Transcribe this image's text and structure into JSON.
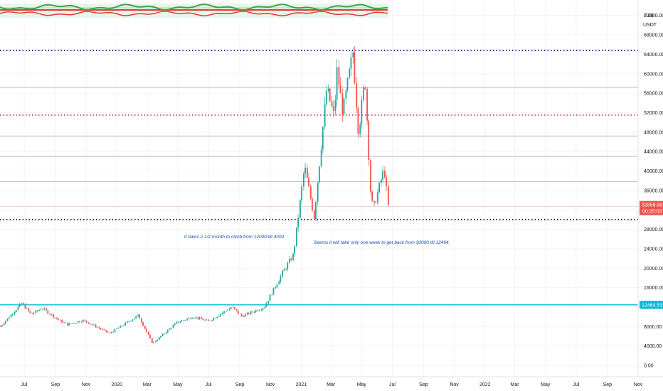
{
  "colors": {
    "up": "#26a69a",
    "down": "#ef5350",
    "dotted_level": "#3d0a8f",
    "red_dotted_level": "#b71c1c",
    "support": "#00bcd4",
    "hline": "#9e9e9e",
    "price_tag": "#ef5350",
    "support_tag": "#00bcd4",
    "note_text": "#1848cc",
    "osc_green": "#43a047",
    "osc_red": "#e53935"
  },
  "header": {
    "top_price": "0.00",
    "currency": "USDT"
  },
  "chart_data": {
    "type": "candlestick",
    "y_axis": {
      "ticks": [
        0,
        4000,
        8000,
        12000,
        16000,
        20000,
        24000,
        28000,
        32000,
        36000,
        40000,
        44000,
        48000,
        52000,
        56000,
        60000,
        64000,
        68000,
        72000
      ],
      "tick_labels": [
        "0.00",
        "4000.00",
        "8000.00",
        "12000.00",
        "16000.00",
        "20000.00",
        "24000.00",
        "28000.00",
        "32000.00",
        "36000.00",
        "40000.00",
        "44000.00",
        "48000.00",
        "52000.00",
        "56000.00",
        "60000.00",
        "64000.00",
        "68000.00",
        "72000.00"
      ],
      "ylim": [
        -2000,
        76000
      ]
    },
    "x_axis": {
      "tick_labels": [
        "Jul",
        "Sep",
        "Nov",
        "2020",
        "Mar",
        "May",
        "Jul",
        "Sep",
        "Nov",
        "2021",
        "Mar",
        "May",
        "Jul",
        "Sep",
        "Nov",
        "2022",
        "Mar",
        "May",
        "Jul",
        "Sep",
        "Nov"
      ],
      "tick_dates": [
        "2019-07",
        "2019-09",
        "2019-11",
        "2020-01",
        "2020-03",
        "2020-05",
        "2020-07",
        "2020-09",
        "2020-11",
        "2021-01",
        "2021-03",
        "2021-05",
        "2021-07",
        "2021-09",
        "2021-11",
        "2022-01",
        "2022-03",
        "2022-05",
        "2022-07",
        "2022-09",
        "2022-11"
      ]
    },
    "price_path": [
      {
        "date": "2019-05-15",
        "close": 8000
      },
      {
        "date": "2019-06-26",
        "close": 12800
      },
      {
        "date": "2019-07-15",
        "close": 10500
      },
      {
        "date": "2019-08-06",
        "close": 11800
      },
      {
        "date": "2019-09-01",
        "close": 9800
      },
      {
        "date": "2019-09-24",
        "close": 8400
      },
      {
        "date": "2019-10-26",
        "close": 9300
      },
      {
        "date": "2019-12-18",
        "close": 6600
      },
      {
        "date": "2020-02-13",
        "close": 10300
      },
      {
        "date": "2020-03-12",
        "close": 4500
      },
      {
        "date": "2020-04-29",
        "close": 8800
      },
      {
        "date": "2020-06-01",
        "close": 10000
      },
      {
        "date": "2020-07-01",
        "close": 9100
      },
      {
        "date": "2020-08-17",
        "close": 12000
      },
      {
        "date": "2020-09-05",
        "close": 10100
      },
      {
        "date": "2020-10-20",
        "close": 12000
      },
      {
        "date": "2020-11-25",
        "close": 19000
      },
      {
        "date": "2020-12-17",
        "close": 22800
      },
      {
        "date": "2021-01-08",
        "close": 41000
      },
      {
        "date": "2021-01-27",
        "close": 30500
      },
      {
        "date": "2021-02-21",
        "close": 57000
      },
      {
        "date": "2021-03-08",
        "close": 51000
      },
      {
        "date": "2021-03-13",
        "close": 61000
      },
      {
        "date": "2021-03-25",
        "close": 52000
      },
      {
        "date": "2021-04-14",
        "close": 64500
      },
      {
        "date": "2021-04-25",
        "close": 48000
      },
      {
        "date": "2021-05-08",
        "close": 59000
      },
      {
        "date": "2021-05-19",
        "close": 36000
      },
      {
        "date": "2021-05-24",
        "close": 32000
      },
      {
        "date": "2021-06-15",
        "close": 40500
      },
      {
        "date": "2021-06-23",
        "close": 32659.99
      }
    ],
    "levels": [
      {
        "price": 64800,
        "style": "dotted-purple"
      },
      {
        "price": 57200,
        "style": "solid-gray"
      },
      {
        "price": 51500,
        "style": "dotted-red"
      },
      {
        "price": 47200,
        "style": "solid-gray"
      },
      {
        "price": 43000,
        "style": "solid-gray"
      },
      {
        "price": 37800,
        "style": "solid-gray"
      },
      {
        "price": 32659.99,
        "style": "solid-gray-thin"
      },
      {
        "price": 30000,
        "style": "dotted-purple"
      },
      {
        "price": 12464.53,
        "style": "solid-cyan"
      }
    ],
    "last_price_label": "32659.99",
    "countdown_label": "00:25:03",
    "support_label": "12464.53",
    "annotations": [
      {
        "text": "It takes 2 1/2 month to climb from 12000 till 4200.",
        "date": "2020-08-22",
        "price": 26200
      },
      {
        "text": "Seems it will take only one week to get back from 30000 till 12464.",
        "date": "2021-06-10",
        "price": 25000
      }
    ]
  }
}
